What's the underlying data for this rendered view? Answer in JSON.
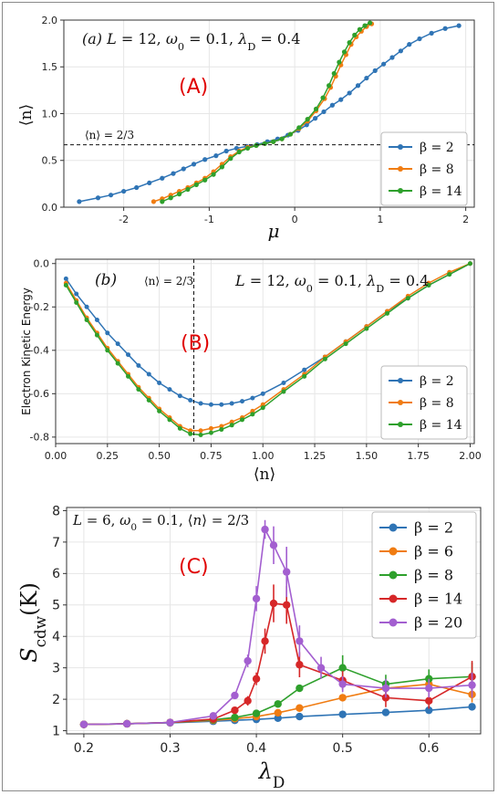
{
  "colors": {
    "beta2": "#2f74b5",
    "beta6": "#f07c12",
    "beta8": "#2ea02c",
    "beta14": "#d62728",
    "beta20": "#a35fd0",
    "panel_letter": "#e00000"
  },
  "chart_data": [
    {
      "panel": "A",
      "type": "line",
      "panel_letter": "(A)",
      "annotation": "(a)  L = 12, ω0 = 0.1, λD = 0.4",
      "hline_label": "⟨n⟩ = 2/3",
      "hline_value": 0.6667,
      "xlabel": "μ",
      "ylabel": "⟨n⟩",
      "xlim": [
        -2.7,
        2.1
      ],
      "ylim": [
        0,
        2.0
      ],
      "xticks": [
        "-2",
        "-1",
        "0",
        "1",
        "2"
      ],
      "yticks": [
        "0.0",
        "0.5",
        "1.0",
        "1.5",
        "2.0"
      ],
      "legend_position": "bottom-right",
      "grid": true,
      "series": [
        {
          "name": "β = 2",
          "color_key": "beta2",
          "x": [
            -2.52,
            -2.3,
            -2.15,
            -2.0,
            -1.85,
            -1.7,
            -1.55,
            -1.42,
            -1.3,
            -1.18,
            -1.05,
            -0.92,
            -0.8,
            -0.68,
            -0.56,
            -0.44,
            -0.32,
            -0.2,
            -0.08,
            0.04,
            0.14,
            0.24,
            0.34,
            0.44,
            0.54,
            0.64,
            0.74,
            0.84,
            0.94,
            1.04,
            1.14,
            1.24,
            1.34,
            1.46,
            1.6,
            1.76,
            1.92
          ],
          "y": [
            0.06,
            0.1,
            0.13,
            0.17,
            0.21,
            0.26,
            0.31,
            0.36,
            0.41,
            0.46,
            0.51,
            0.55,
            0.6,
            0.63,
            0.65,
            0.67,
            0.7,
            0.73,
            0.77,
            0.82,
            0.88,
            0.95,
            1.02,
            1.09,
            1.15,
            1.22,
            1.3,
            1.38,
            1.46,
            1.53,
            1.6,
            1.67,
            1.74,
            1.8,
            1.86,
            1.91,
            1.94
          ]
        },
        {
          "name": "β = 8",
          "color_key": "beta6",
          "x": [
            -1.65,
            -1.55,
            -1.45,
            -1.35,
            -1.25,
            -1.15,
            -1.05,
            -0.95,
            -0.85,
            -0.75,
            -0.65,
            -0.55,
            -0.45,
            -0.35,
            -0.25,
            -0.15,
            -0.05,
            0.05,
            0.15,
            0.25,
            0.35,
            0.42,
            0.48,
            0.54,
            0.6,
            0.66,
            0.72,
            0.78,
            0.84,
            0.9
          ],
          "y": [
            0.06,
            0.09,
            0.13,
            0.17,
            0.21,
            0.26,
            0.31,
            0.38,
            0.46,
            0.54,
            0.6,
            0.64,
            0.66,
            0.68,
            0.7,
            0.73,
            0.78,
            0.84,
            0.92,
            1.03,
            1.16,
            1.28,
            1.4,
            1.52,
            1.63,
            1.74,
            1.82,
            1.88,
            1.93,
            1.96
          ]
        },
        {
          "name": "β = 14",
          "color_key": "beta8",
          "x": [
            -1.55,
            -1.45,
            -1.35,
            -1.25,
            -1.15,
            -1.05,
            -0.95,
            -0.85,
            -0.75,
            -0.65,
            -0.55,
            -0.45,
            -0.35,
            -0.25,
            -0.15,
            -0.05,
            0.05,
            0.15,
            0.25,
            0.33,
            0.4,
            0.46,
            0.52,
            0.58,
            0.64,
            0.7,
            0.76,
            0.82,
            0.88
          ],
          "y": [
            0.06,
            0.1,
            0.14,
            0.19,
            0.24,
            0.29,
            0.35,
            0.43,
            0.52,
            0.59,
            0.63,
            0.66,
            0.68,
            0.7,
            0.73,
            0.78,
            0.85,
            0.94,
            1.05,
            1.17,
            1.3,
            1.43,
            1.55,
            1.66,
            1.76,
            1.84,
            1.9,
            1.94,
            1.97
          ]
        }
      ]
    },
    {
      "panel": "B",
      "type": "line",
      "panel_letter": "(B)",
      "annotation_left": "(b)",
      "annotation_right": "L = 12, ω0 = 0.1, λD = 0.4",
      "vline_label": "⟨n⟩ = 2/3",
      "vline_value": 0.6667,
      "xlabel": "⟨n⟩",
      "ylabel": "Electron Kinetic Energy",
      "xlim": [
        0,
        2.02
      ],
      "ylim": [
        -0.83,
        0.02
      ],
      "xticks": [
        "0.00",
        "0.25",
        "0.50",
        "0.75",
        "1.00",
        "1.25",
        "1.50",
        "1.75",
        "2.00"
      ],
      "yticks": [
        "0.0",
        "-0.2",
        "-0.4",
        "-0.6",
        "-0.8"
      ],
      "legend_position": "bottom-right",
      "grid": true,
      "series": [
        {
          "name": "β = 2",
          "color_key": "beta2",
          "x": [
            0.05,
            0.1,
            0.15,
            0.2,
            0.25,
            0.3,
            0.35,
            0.4,
            0.45,
            0.5,
            0.55,
            0.6,
            0.65,
            0.7,
            0.75,
            0.8,
            0.85,
            0.9,
            0.95,
            1.0,
            1.1,
            1.2,
            1.3,
            1.4,
            1.5,
            1.6,
            1.7,
            1.8,
            1.9,
            2.0
          ],
          "y": [
            -0.07,
            -0.14,
            -0.2,
            -0.26,
            -0.32,
            -0.37,
            -0.42,
            -0.47,
            -0.51,
            -0.55,
            -0.58,
            -0.61,
            -0.63,
            -0.645,
            -0.65,
            -0.65,
            -0.645,
            -0.635,
            -0.62,
            -0.6,
            -0.55,
            -0.49,
            -0.43,
            -0.36,
            -0.29,
            -0.22,
            -0.16,
            -0.1,
            -0.05,
            0.0
          ]
        },
        {
          "name": "β = 8",
          "color_key": "beta6",
          "x": [
            0.05,
            0.1,
            0.15,
            0.2,
            0.25,
            0.3,
            0.35,
            0.4,
            0.45,
            0.5,
            0.55,
            0.6,
            0.65,
            0.7,
            0.75,
            0.8,
            0.85,
            0.9,
            0.95,
            1.0,
            1.1,
            1.2,
            1.3,
            1.4,
            1.5,
            1.6,
            1.7,
            1.8,
            1.9,
            2.0
          ],
          "y": [
            -0.09,
            -0.17,
            -0.25,
            -0.32,
            -0.39,
            -0.45,
            -0.51,
            -0.57,
            -0.62,
            -0.67,
            -0.71,
            -0.75,
            -0.77,
            -0.77,
            -0.76,
            -0.75,
            -0.73,
            -0.71,
            -0.68,
            -0.65,
            -0.58,
            -0.51,
            -0.43,
            -0.36,
            -0.29,
            -0.22,
            -0.15,
            -0.09,
            -0.04,
            0.0
          ]
        },
        {
          "name": "β = 14",
          "color_key": "beta8",
          "x": [
            0.05,
            0.1,
            0.15,
            0.2,
            0.25,
            0.3,
            0.35,
            0.4,
            0.45,
            0.5,
            0.55,
            0.6,
            0.65,
            0.7,
            0.75,
            0.8,
            0.85,
            0.9,
            0.95,
            1.0,
            1.1,
            1.2,
            1.3,
            1.4,
            1.5,
            1.6,
            1.7,
            1.8,
            1.9,
            2.0
          ],
          "y": [
            -0.1,
            -0.18,
            -0.26,
            -0.33,
            -0.4,
            -0.46,
            -0.52,
            -0.58,
            -0.63,
            -0.68,
            -0.72,
            -0.76,
            -0.785,
            -0.79,
            -0.78,
            -0.765,
            -0.745,
            -0.72,
            -0.695,
            -0.665,
            -0.59,
            -0.52,
            -0.44,
            -0.37,
            -0.3,
            -0.23,
            -0.16,
            -0.1,
            -0.05,
            0.0
          ]
        }
      ]
    },
    {
      "panel": "C",
      "type": "line",
      "panel_letter": "(C)",
      "annotation": "L = 6, ω0 = 0.1, ⟨n⟩ = 2/3",
      "xlabel": "λD",
      "ylabel": "Scdw(K)",
      "xlim": [
        0.18,
        0.66
      ],
      "ylim": [
        0.9,
        8.1
      ],
      "xticks": [
        "0.2",
        "0.3",
        "0.4",
        "0.5",
        "0.6"
      ],
      "yticks": [
        "1",
        "2",
        "3",
        "4",
        "5",
        "6",
        "7",
        "8"
      ],
      "legend_position": "top-right",
      "grid": true,
      "series": [
        {
          "name": "β = 2",
          "color_key": "beta2",
          "x": [
            0.2,
            0.25,
            0.3,
            0.35,
            0.375,
            0.4,
            0.425,
            0.45,
            0.5,
            0.55,
            0.6,
            0.65
          ],
          "y": [
            1.2,
            1.22,
            1.25,
            1.3,
            1.33,
            1.36,
            1.4,
            1.45,
            1.52,
            1.58,
            1.65,
            1.76
          ],
          "err": [
            0,
            0,
            0,
            0,
            0,
            0,
            0,
            0,
            0,
            0,
            0,
            0
          ]
        },
        {
          "name": "β = 6",
          "color_key": "beta6",
          "x": [
            0.2,
            0.25,
            0.3,
            0.35,
            0.375,
            0.4,
            0.425,
            0.45,
            0.5,
            0.55,
            0.6,
            0.65
          ],
          "y": [
            1.2,
            1.22,
            1.26,
            1.33,
            1.38,
            1.45,
            1.57,
            1.72,
            2.05,
            2.35,
            2.48,
            2.15
          ],
          "err": [
            0,
            0,
            0,
            0,
            0,
            0,
            0,
            0,
            0,
            0.1,
            0.1,
            0.25
          ]
        },
        {
          "name": "β = 8",
          "color_key": "beta8",
          "x": [
            0.2,
            0.25,
            0.3,
            0.35,
            0.375,
            0.4,
            0.425,
            0.45,
            0.5,
            0.55,
            0.6,
            0.65
          ],
          "y": [
            1.2,
            1.22,
            1.26,
            1.35,
            1.42,
            1.55,
            1.85,
            2.35,
            3.0,
            2.48,
            2.65,
            2.72
          ],
          "err": [
            0,
            0,
            0,
            0,
            0,
            0,
            0,
            0,
            0.4,
            0.3,
            0.3,
            0.45
          ]
        },
        {
          "name": "β = 14",
          "color_key": "beta14",
          "x": [
            0.2,
            0.25,
            0.3,
            0.35,
            0.375,
            0.39,
            0.4,
            0.41,
            0.42,
            0.435,
            0.45,
            0.5,
            0.55,
            0.6,
            0.65
          ],
          "y": [
            1.2,
            1.22,
            1.26,
            1.37,
            1.65,
            1.95,
            2.65,
            3.85,
            5.05,
            5.0,
            3.1,
            2.6,
            2.05,
            1.95,
            2.72
          ],
          "err": [
            0,
            0,
            0,
            0,
            0.1,
            0.15,
            0.2,
            0.4,
            0.6,
            0.6,
            0.4,
            0.3,
            0.3,
            0.25,
            0.5
          ]
        },
        {
          "name": "β = 20",
          "color_key": "beta20",
          "x": [
            0.2,
            0.25,
            0.3,
            0.35,
            0.375,
            0.39,
            0.4,
            0.41,
            0.42,
            0.435,
            0.45,
            0.475,
            0.5,
            0.55,
            0.6,
            0.65
          ],
          "y": [
            1.2,
            1.22,
            1.26,
            1.47,
            2.12,
            3.22,
            5.2,
            7.4,
            6.9,
            6.05,
            3.85,
            3.0,
            2.48,
            2.35,
            2.35,
            2.45
          ],
          "err": [
            0,
            0,
            0,
            0,
            0.1,
            0.2,
            0.4,
            0.3,
            0.6,
            0.8,
            0.5,
            0.35,
            0.25,
            0.3,
            0.3,
            0.4
          ]
        }
      ]
    }
  ]
}
